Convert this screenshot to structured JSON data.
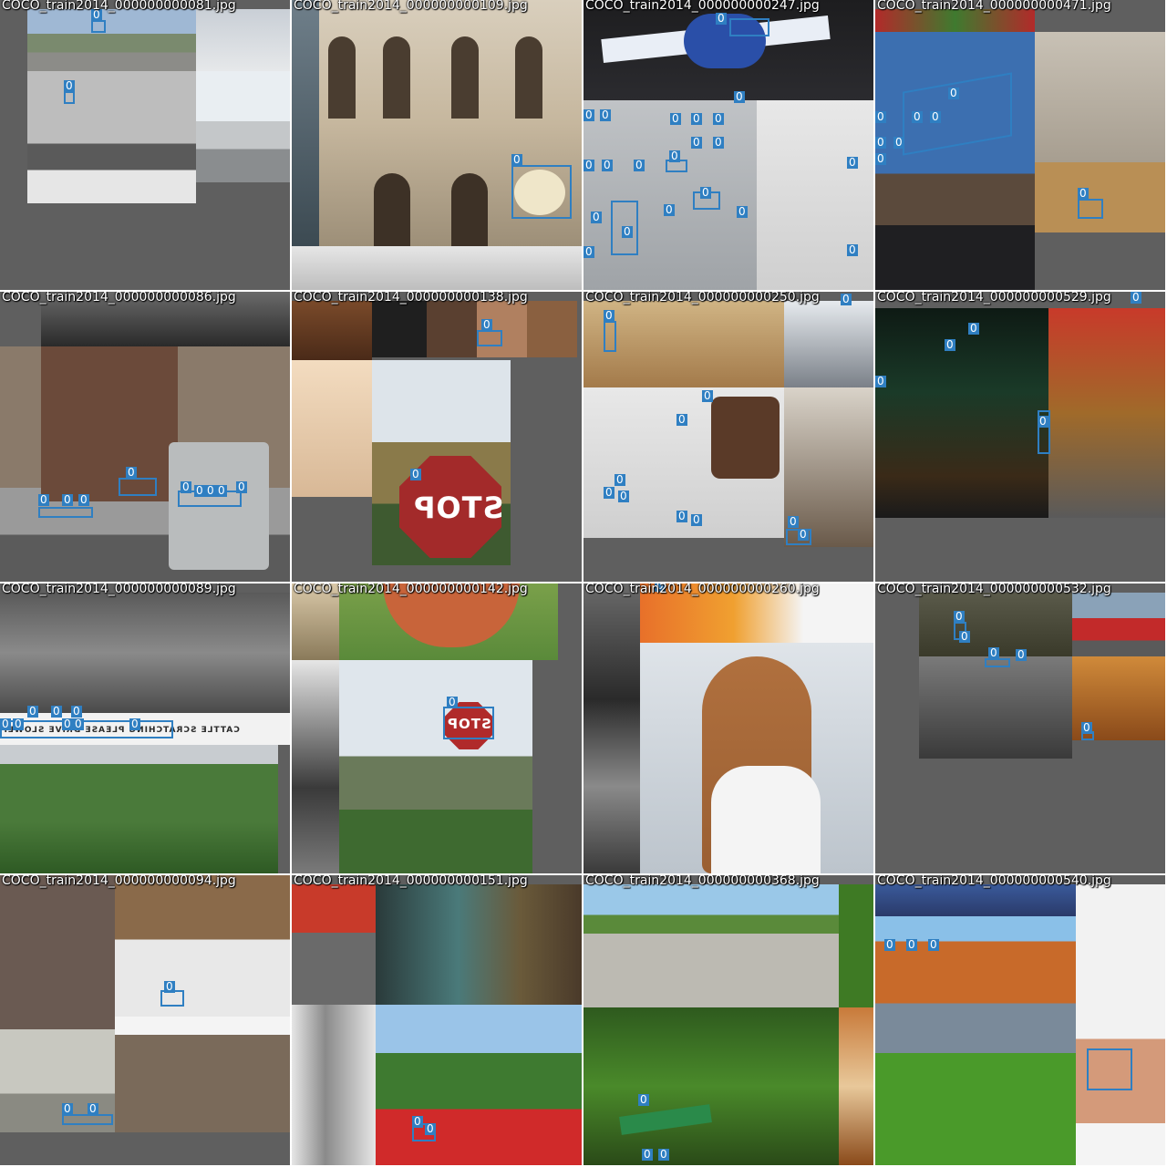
{
  "mosaic": {
    "tiles": [
      {
        "title": "COCO_train2014_000000000081.jpg"
      },
      {
        "title": "COCO_train2014_000000000109.jpg"
      },
      {
        "title": "COCO_train2014_000000000247.jpg"
      },
      {
        "title": "COCO_train2014_000000000471.jpg"
      },
      {
        "title": "COCO_train2014_000000000086.jpg"
      },
      {
        "title": "COCO_train2014_000000000138.jpg"
      },
      {
        "title": "COCO_train2014_000000000250.jpg"
      },
      {
        "title": "COCO_train2014_000000000529.jpg"
      },
      {
        "title": "COCO_train2014_000000000089.jpg"
      },
      {
        "title": "COCO_train2014_000000000142.jpg"
      },
      {
        "title": "COCO_train2014_000000000260.jpg"
      },
      {
        "title": "COCO_train2014_000000000532.jpg"
      },
      {
        "title": "COCO_train2014_000000000094.jpg"
      },
      {
        "title": "COCO_train2014_000000000151.jpg"
      },
      {
        "title": "COCO_train2014_000000000368.jpg"
      },
      {
        "title": "COCO_train2014_000000000540.jpg"
      }
    ],
    "class_label": "0",
    "signs": {
      "stop_1": "STOP",
      "stop_2": "STOP",
      "sign_tile9": "CATTLE SCRATCHING PLEASE DRIVE SLOWLY"
    },
    "colors": {
      "letterbox_gray": "#5f5f5f",
      "box_blue": "#2f7fc2",
      "title_text": "#ffffff"
    }
  }
}
